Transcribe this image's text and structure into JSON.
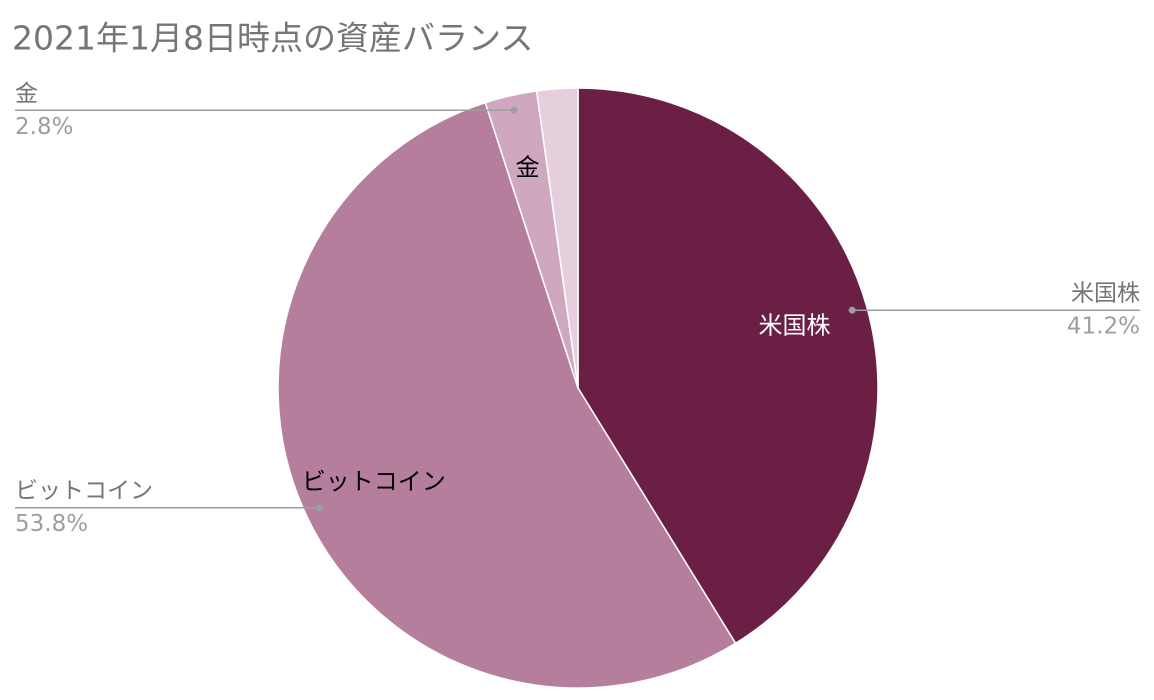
{
  "chart_data": {
    "type": "pie",
    "title": "2021年1月8日時点の資産バランス",
    "categories": [
      "米国株",
      "ビットコイン",
      "金",
      null
    ],
    "values": [
      41.2,
      53.8,
      2.8,
      2.2
    ],
    "value_labels": [
      "41.2%",
      "53.8%",
      "2.8%",
      null
    ],
    "colors": [
      "#6b1f45",
      "#b57e9c",
      "#cfa8bf",
      "#e6cfdc"
    ],
    "inner_label_colors": [
      "#ffffff",
      "#000000",
      "#000000",
      "#000000"
    ]
  }
}
